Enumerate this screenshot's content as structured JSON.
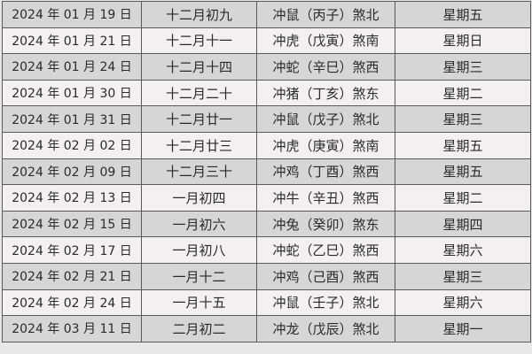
{
  "rows": [
    {
      "date": "2024 年 01 月 19 日",
      "lunar": "十二月初九",
      "clash": "冲鼠（丙子）煞北",
      "weekday": "星期五"
    },
    {
      "date": "2024 年 01 月 21 日",
      "lunar": "十二月十一",
      "clash": "冲虎（戊寅）煞南",
      "weekday": "星期日"
    },
    {
      "date": "2024 年 01 月 24 日",
      "lunar": "十二月十四",
      "clash": "冲蛇（辛巳）煞西",
      "weekday": "星期三"
    },
    {
      "date": "2024 年 01 月 30 日",
      "lunar": "十二月二十",
      "clash": "冲猪（丁亥）煞东",
      "weekday": "星期二"
    },
    {
      "date": "2024 年 01 月 31 日",
      "lunar": "十二月廿一",
      "clash": "冲鼠（戊子）煞北",
      "weekday": "星期三"
    },
    {
      "date": "2024 年 02 月 02 日",
      "lunar": "十二月廿三",
      "clash": "冲虎（庚寅）煞南",
      "weekday": "星期五"
    },
    {
      "date": "2024 年 02 月 09 日",
      "lunar": "十二月三十",
      "clash": "冲鸡（丁酉）煞西",
      "weekday": "星期五"
    },
    {
      "date": "2024 年 02 月 13 日",
      "lunar": "一月初四",
      "clash": "冲牛（辛丑）煞西",
      "weekday": "星期二"
    },
    {
      "date": "2024 年 02 月 15 日",
      "lunar": "一月初六",
      "clash": "冲兔（癸卯）煞东",
      "weekday": "星期四"
    },
    {
      "date": "2024 年 02 月 17 日",
      "lunar": "一月初八",
      "clash": "冲蛇（乙巳）煞西",
      "weekday": "星期六"
    },
    {
      "date": "2024 年 02 月 21 日",
      "lunar": "一月十二",
      "clash": "冲鸡（己酉）煞西",
      "weekday": "星期三"
    },
    {
      "date": "2024 年 02 月 24 日",
      "lunar": "一月十五",
      "clash": "冲鼠（壬子）煞北",
      "weekday": "星期六"
    },
    {
      "date": "2024 年 03 月 11 日",
      "lunar": "二月初二",
      "clash": "冲龙（戊辰）煞北",
      "weekday": "星期一"
    }
  ]
}
